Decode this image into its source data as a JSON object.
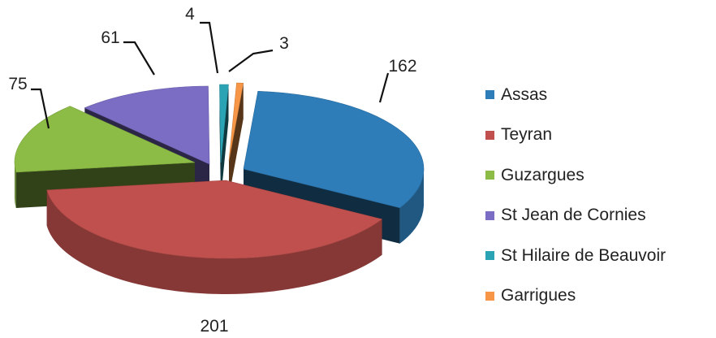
{
  "chart_data": {
    "type": "pie",
    "three_d": true,
    "exploded": true,
    "legend_position": "right",
    "slices": [
      {
        "name": "Assas",
        "value": 162,
        "label": "162",
        "color": "#2e7db9"
      },
      {
        "name": "Teyran",
        "value": 201,
        "label": "201",
        "color": "#c0504d"
      },
      {
        "name": "Guzargues",
        "value": 75,
        "label": "75",
        "color": "#8cbc45"
      },
      {
        "name": "St Jean de Cornies",
        "value": 61,
        "label": "61",
        "color": "#7b6cc4"
      },
      {
        "name": "St Hilaire de Beauvoir",
        "value": 4,
        "label": "4",
        "color": "#2aa3b5"
      },
      {
        "name": "Garrigues",
        "value": 3,
        "label": "3",
        "color": "#f79646"
      }
    ]
  }
}
